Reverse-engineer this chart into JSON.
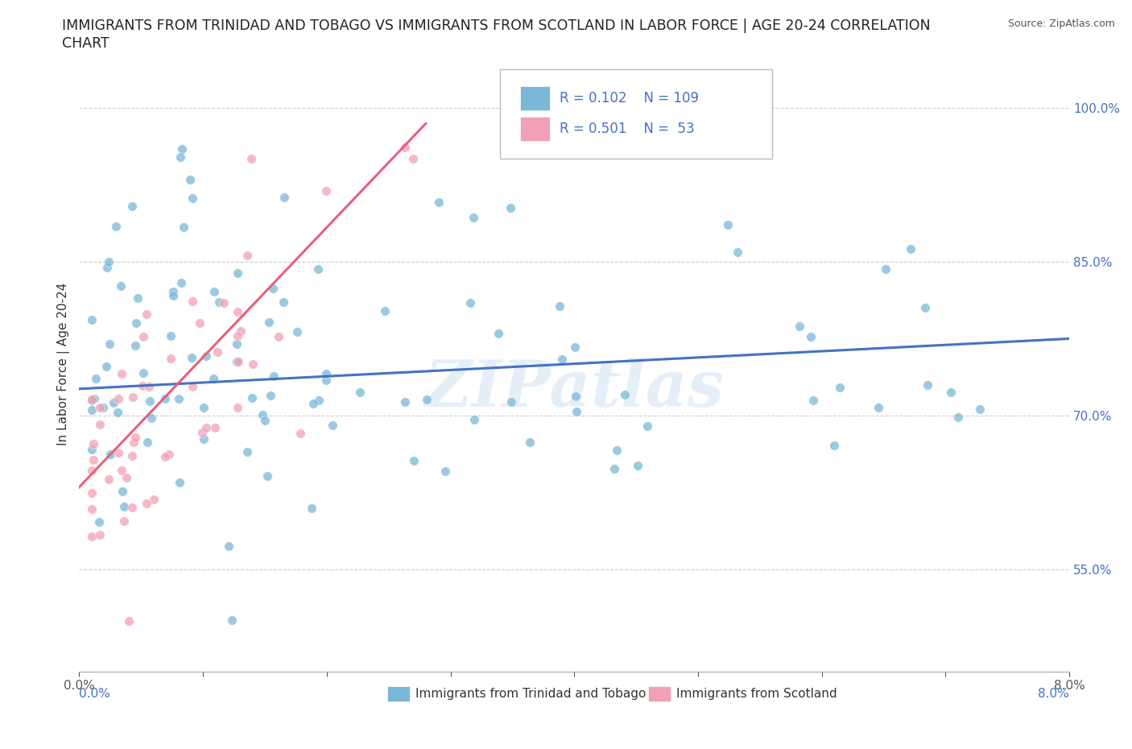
{
  "title_line1": "IMMIGRANTS FROM TRINIDAD AND TOBAGO VS IMMIGRANTS FROM SCOTLAND IN LABOR FORCE | AGE 20-24 CORRELATION",
  "title_line2": "CHART",
  "source_text": "Source: ZipAtlas.com",
  "ylabel": "In Labor Force | Age 20-24",
  "xlim": [
    0.0,
    0.08
  ],
  "ylim": [
    0.45,
    1.05
  ],
  "xtick_positions": [
    0.0,
    0.01,
    0.02,
    0.03,
    0.04,
    0.05,
    0.06,
    0.07,
    0.08
  ],
  "xticklabels": [
    "0.0%",
    "",
    "",
    "",
    "",
    "",
    "",
    "",
    "8.0%"
  ],
  "ytick_positions": [
    0.55,
    0.7,
    0.85,
    1.0
  ],
  "yticklabels": [
    "55.0%",
    "70.0%",
    "85.0%",
    "100.0%"
  ],
  "watermark": "ZIPatlas",
  "blue_color": "#7ab8d9",
  "pink_color": "#f2a0b5",
  "blue_line_color": "#4472c4",
  "pink_line_color": "#e8607a",
  "legend_R1": "R = 0.102",
  "legend_N1": "N = 109",
  "legend_R2": "R = 0.501",
  "legend_N2": "N =  53",
  "grid_color": "#cccccc",
  "background_color": "#ffffff",
  "title_fontsize": 12.5,
  "axis_label_fontsize": 11,
  "tick_fontsize": 11,
  "legend_fontsize": 12,
  "blue_trend_x": [
    0.0,
    0.08
  ],
  "blue_trend_y": [
    0.726,
    0.775
  ],
  "pink_trend_x": [
    0.0,
    0.028
  ],
  "pink_trend_y": [
    0.63,
    0.985
  ]
}
